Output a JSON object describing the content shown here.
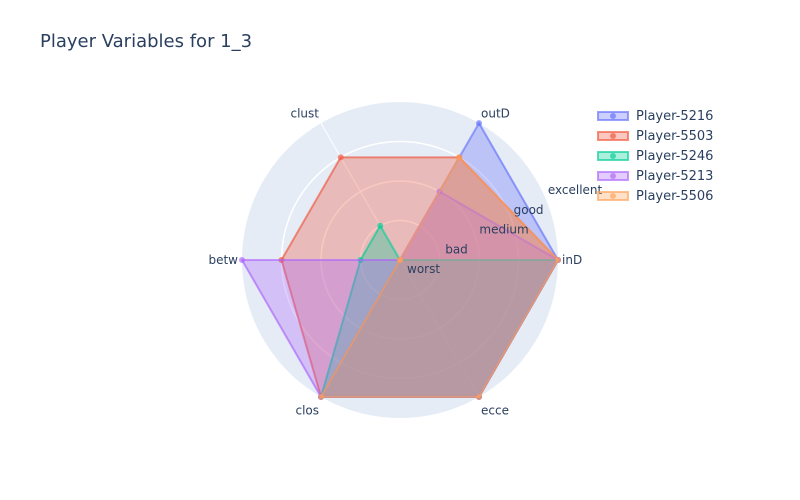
{
  "chart_data": {
    "type": "radar",
    "title": "Player Variables for 1_3",
    "axes": [
      "inD",
      "outD",
      "clust",
      "betw",
      "clos",
      "ecce"
    ],
    "radial_tick_labels": [
      "worst",
      "bad",
      "medium",
      "good",
      "excellent"
    ],
    "radial_range": [
      0,
      4
    ],
    "series": [
      {
        "name": "Player-5216",
        "color": "#636efa",
        "values": [
          4,
          4,
          0,
          0,
          4,
          4
        ]
      },
      {
        "name": "Player-5503",
        "color": "#ef553b",
        "values": [
          4,
          3,
          3,
          3,
          4,
          4
        ]
      },
      {
        "name": "Player-5246",
        "color": "#00cc96",
        "values": [
          4,
          0,
          1,
          1,
          4,
          4
        ]
      },
      {
        "name": "Player-5213",
        "color": "#ab63fa",
        "values": [
          4,
          2,
          0,
          4,
          4,
          4
        ]
      },
      {
        "name": "Player-5506",
        "color": "#ffa15a",
        "values": [
          4,
          3,
          0,
          0,
          4,
          4
        ]
      }
    ],
    "polar_background": "#e5ecf6",
    "grid": true,
    "legend_position": "top-right"
  }
}
